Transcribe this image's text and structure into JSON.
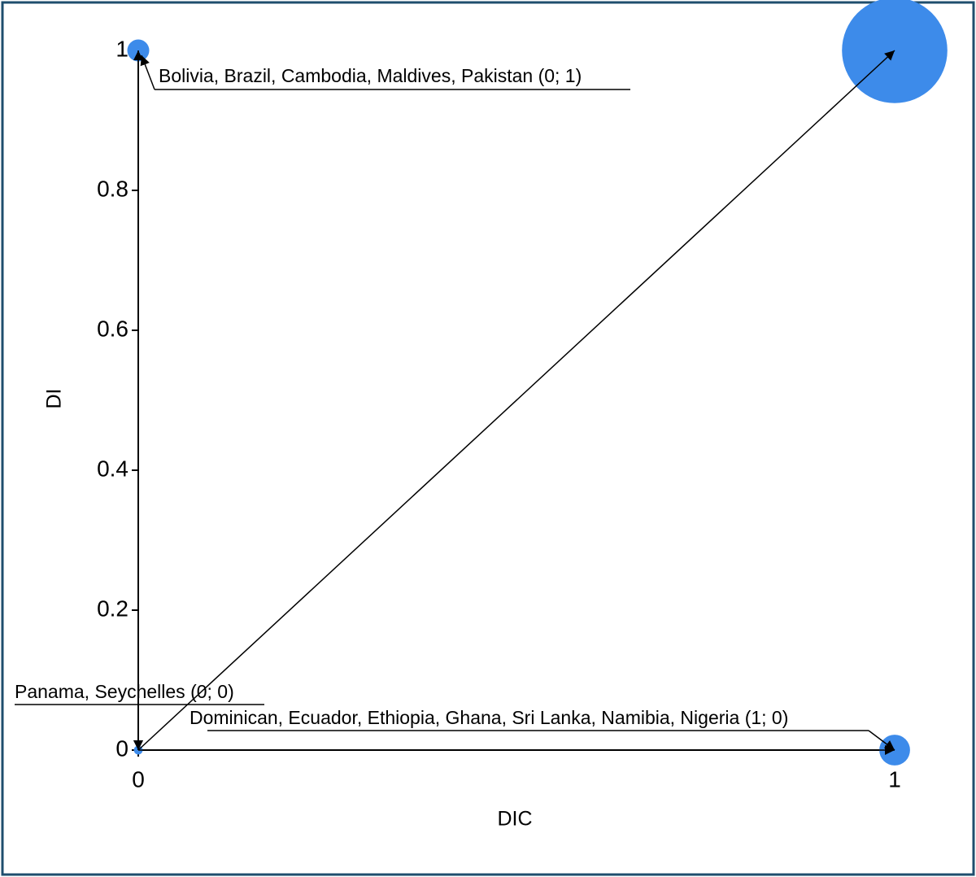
{
  "chart_data": {
    "type": "bubble",
    "x_label": "DIC",
    "y_label": "DI",
    "xlim": [
      0,
      1
    ],
    "xticks": [
      0,
      1
    ],
    "ylim": [
      0,
      1
    ],
    "yticks": [
      0,
      0.2,
      0.4,
      0.6,
      0.8,
      1
    ],
    "color": "#3d8bea",
    "x": [
      0,
      1,
      0,
      1
    ],
    "values": [
      1,
      1,
      0,
      0
    ],
    "sizes": [
      5,
      24,
      2,
      7
    ],
    "labels": [
      "Bolivia, Brazil, Cambodia, Maldives, Pakistan (0; 1)",
      null,
      "Panama, Seychelles (0; 0)",
      "Dominican, Ecuador, Ethiopia, Ghana, Sri Lanka, Namibia, Nigeria (1; 0)"
    ]
  }
}
